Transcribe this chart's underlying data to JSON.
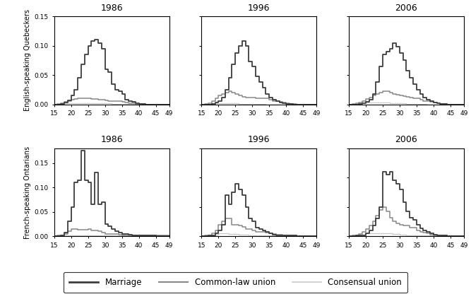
{
  "years": [
    "1986",
    "1996",
    "2006"
  ],
  "row_labels": [
    "English-speaking Quebeckers",
    "French-speaking Ontarians"
  ],
  "ages": [
    15,
    16,
    17,
    18,
    19,
    20,
    21,
    22,
    23,
    24,
    25,
    26,
    27,
    28,
    29,
    30,
    31,
    32,
    33,
    34,
    35,
    36,
    37,
    38,
    39,
    40,
    41,
    42,
    43,
    44,
    45,
    46,
    47,
    48,
    49
  ],
  "data": {
    "EQ": {
      "1986": {
        "marriage": [
          0.0,
          0.0,
          0.001,
          0.003,
          0.007,
          0.015,
          0.025,
          0.045,
          0.068,
          0.085,
          0.1,
          0.108,
          0.11,
          0.105,
          0.095,
          0.06,
          0.055,
          0.035,
          0.025,
          0.022,
          0.018,
          0.008,
          0.006,
          0.004,
          0.002,
          0.001,
          0.001,
          0.0,
          0.0,
          0.0,
          0.0,
          0.0,
          0.0,
          0.0,
          0.0
        ],
        "common_law": [
          0.0,
          0.001,
          0.002,
          0.004,
          0.006,
          0.008,
          0.009,
          0.01,
          0.01,
          0.01,
          0.01,
          0.009,
          0.009,
          0.008,
          0.008,
          0.007,
          0.006,
          0.006,
          0.005,
          0.005,
          0.004,
          0.003,
          0.002,
          0.002,
          0.001,
          0.001,
          0.001,
          0.0,
          0.0,
          0.0,
          0.0,
          0.0,
          0.0,
          0.0,
          0.0
        ],
        "consensual": [
          0.0,
          0.001,
          0.001,
          0.002,
          0.002,
          0.002,
          0.002,
          0.002,
          0.002,
          0.002,
          0.002,
          0.002,
          0.002,
          0.002,
          0.002,
          0.002,
          0.002,
          0.001,
          0.001,
          0.001,
          0.001,
          0.001,
          0.001,
          0.001,
          0.001,
          0.001,
          0.0,
          0.0,
          0.0,
          0.0,
          0.0,
          0.0,
          0.0,
          0.0,
          0.0
        ]
      },
      "1996": {
        "marriage": [
          0.0,
          0.0,
          0.0,
          0.001,
          0.003,
          0.006,
          0.012,
          0.025,
          0.045,
          0.068,
          0.088,
          0.1,
          0.108,
          0.1,
          0.073,
          0.065,
          0.048,
          0.038,
          0.028,
          0.018,
          0.012,
          0.008,
          0.005,
          0.003,
          0.002,
          0.001,
          0.001,
          0.0,
          0.0,
          0.0,
          0.0,
          0.0,
          0.0,
          0.0,
          0.0
        ],
        "common_law": [
          0.0,
          0.001,
          0.002,
          0.005,
          0.01,
          0.015,
          0.018,
          0.02,
          0.022,
          0.02,
          0.018,
          0.015,
          0.013,
          0.012,
          0.012,
          0.012,
          0.01,
          0.01,
          0.01,
          0.01,
          0.008,
          0.006,
          0.005,
          0.004,
          0.003,
          0.002,
          0.001,
          0.001,
          0.0,
          0.0,
          0.0,
          0.0,
          0.0,
          0.0,
          0.0
        ],
        "consensual": [
          0.0,
          0.001,
          0.001,
          0.002,
          0.002,
          0.002,
          0.002,
          0.002,
          0.002,
          0.002,
          0.002,
          0.001,
          0.001,
          0.001,
          0.001,
          0.001,
          0.001,
          0.001,
          0.001,
          0.0,
          0.0,
          0.0,
          0.0,
          0.0,
          0.0,
          0.0,
          0.0,
          0.0,
          0.0,
          0.0,
          0.0,
          0.0,
          0.0,
          0.0,
          0.0
        ]
      },
      "2006": {
        "marriage": [
          0.0,
          0.0,
          0.0,
          0.001,
          0.002,
          0.004,
          0.008,
          0.018,
          0.038,
          0.065,
          0.085,
          0.09,
          0.095,
          0.105,
          0.098,
          0.088,
          0.075,
          0.058,
          0.045,
          0.035,
          0.025,
          0.018,
          0.012,
          0.008,
          0.005,
          0.003,
          0.002,
          0.001,
          0.001,
          0.0,
          0.0,
          0.0,
          0.0,
          0.0,
          0.0
        ],
        "common_law": [
          0.0,
          0.001,
          0.002,
          0.003,
          0.006,
          0.009,
          0.012,
          0.015,
          0.018,
          0.02,
          0.022,
          0.022,
          0.02,
          0.018,
          0.016,
          0.015,
          0.014,
          0.013,
          0.012,
          0.011,
          0.01,
          0.008,
          0.006,
          0.005,
          0.004,
          0.003,
          0.002,
          0.001,
          0.001,
          0.0,
          0.0,
          0.0,
          0.0,
          0.0,
          0.0
        ],
        "consensual": [
          0.0,
          0.001,
          0.001,
          0.002,
          0.003,
          0.003,
          0.003,
          0.003,
          0.003,
          0.003,
          0.003,
          0.003,
          0.002,
          0.002,
          0.002,
          0.002,
          0.002,
          0.001,
          0.001,
          0.001,
          0.001,
          0.001,
          0.001,
          0.0,
          0.0,
          0.0,
          0.0,
          0.0,
          0.0,
          0.0,
          0.0,
          0.0,
          0.0,
          0.0,
          0.0
        ]
      }
    },
    "FO": {
      "1986": {
        "marriage": [
          0.0,
          0.0,
          0.002,
          0.008,
          0.03,
          0.06,
          0.11,
          0.115,
          0.175,
          0.115,
          0.11,
          0.065,
          0.13,
          0.065,
          0.07,
          0.025,
          0.02,
          0.015,
          0.01,
          0.008,
          0.005,
          0.004,
          0.003,
          0.002,
          0.002,
          0.002,
          0.002,
          0.002,
          0.002,
          0.002,
          0.0,
          0.0,
          0.0,
          0.0,
          0.0
        ],
        "common_law": [
          0.0,
          0.001,
          0.002,
          0.005,
          0.01,
          0.015,
          0.015,
          0.013,
          0.013,
          0.013,
          0.015,
          0.012,
          0.012,
          0.01,
          0.008,
          0.005,
          0.004,
          0.004,
          0.004,
          0.003,
          0.002,
          0.002,
          0.002,
          0.001,
          0.001,
          0.001,
          0.001,
          0.001,
          0.001,
          0.001,
          0.001,
          0.001,
          0.001,
          0.001,
          0.0
        ],
        "consensual": [
          0.0,
          0.001,
          0.001,
          0.002,
          0.002,
          0.002,
          0.002,
          0.002,
          0.002,
          0.002,
          0.002,
          0.002,
          0.002,
          0.002,
          0.002,
          0.001,
          0.001,
          0.001,
          0.001,
          0.001,
          0.001,
          0.001,
          0.001,
          0.001,
          0.001,
          0.001,
          0.001,
          0.001,
          0.001,
          0.001,
          0.001,
          0.001,
          0.001,
          0.0,
          0.0
        ]
      },
      "1996": {
        "marriage": [
          0.0,
          0.0,
          0.001,
          0.002,
          0.005,
          0.01,
          0.02,
          0.07,
          0.055,
          0.075,
          0.09,
          0.08,
          0.07,
          0.05,
          0.03,
          0.025,
          0.015,
          0.012,
          0.01,
          0.008,
          0.005,
          0.003,
          0.002,
          0.002,
          0.001,
          0.001,
          0.001,
          0.001,
          0.0,
          0.0,
          0.0,
          0.0,
          0.0,
          0.0,
          0.0
        ],
        "common_law": [
          0.0,
          0.001,
          0.002,
          0.005,
          0.01,
          0.02,
          0.025,
          0.03,
          0.03,
          0.02,
          0.02,
          0.018,
          0.016,
          0.012,
          0.012,
          0.01,
          0.008,
          0.008,
          0.008,
          0.006,
          0.005,
          0.004,
          0.003,
          0.003,
          0.002,
          0.001,
          0.001,
          0.001,
          0.0,
          0.0,
          0.0,
          0.0,
          0.0,
          0.0,
          0.0
        ],
        "consensual": [
          0.0,
          0.001,
          0.001,
          0.002,
          0.003,
          0.005,
          0.005,
          0.005,
          0.004,
          0.004,
          0.004,
          0.003,
          0.003,
          0.003,
          0.002,
          0.002,
          0.002,
          0.002,
          0.002,
          0.002,
          0.001,
          0.001,
          0.001,
          0.001,
          0.001,
          0.001,
          0.0,
          0.0,
          0.0,
          0.0,
          0.0,
          0.0,
          0.0,
          0.0,
          0.0
        ]
      },
      "2006": {
        "marriage": [
          0.0,
          0.0,
          0.001,
          0.001,
          0.002,
          0.005,
          0.01,
          0.018,
          0.03,
          0.05,
          0.11,
          0.105,
          0.11,
          0.095,
          0.09,
          0.08,
          0.058,
          0.042,
          0.032,
          0.028,
          0.02,
          0.014,
          0.01,
          0.008,
          0.005,
          0.003,
          0.002,
          0.001,
          0.001,
          0.0,
          0.0,
          0.0,
          0.0,
          0.0,
          0.0
        ],
        "common_law": [
          0.0,
          0.001,
          0.002,
          0.004,
          0.008,
          0.012,
          0.018,
          0.025,
          0.035,
          0.045,
          0.05,
          0.042,
          0.032,
          0.025,
          0.022,
          0.02,
          0.018,
          0.018,
          0.015,
          0.015,
          0.01,
          0.008,
          0.006,
          0.005,
          0.003,
          0.002,
          0.002,
          0.001,
          0.001,
          0.0,
          0.0,
          0.0,
          0.0,
          0.0,
          0.0
        ],
        "consensual": [
          0.0,
          0.001,
          0.001,
          0.002,
          0.003,
          0.005,
          0.005,
          0.005,
          0.005,
          0.005,
          0.005,
          0.005,
          0.005,
          0.004,
          0.004,
          0.003,
          0.003,
          0.002,
          0.002,
          0.002,
          0.001,
          0.001,
          0.001,
          0.001,
          0.001,
          0.001,
          0.0,
          0.0,
          0.0,
          0.0,
          0.0,
          0.0,
          0.0,
          0.0,
          0.0
        ]
      }
    }
  },
  "colors": {
    "marriage": "#3d3d3d",
    "common_law": "#888888",
    "consensual": "#c8c8c8"
  },
  "linewidths": {
    "marriage": 1.3,
    "common_law": 1.1,
    "consensual": 0.9
  },
  "ylim_standard": [
    0.0,
    0.15
  ],
  "ylim_FO1986": [
    0.0,
    0.18
  ],
  "xlim": [
    15,
    49
  ],
  "yticks_standard": [
    0.0,
    0.05,
    0.1,
    0.15
  ],
  "yticks_FO1986": [
    0.0,
    0.05,
    0.1,
    0.15
  ],
  "xticks": [
    15,
    20,
    25,
    30,
    35,
    40,
    45,
    49
  ],
  "legend_labels": [
    "Marriage",
    "Common-law union",
    "Consensual union"
  ]
}
